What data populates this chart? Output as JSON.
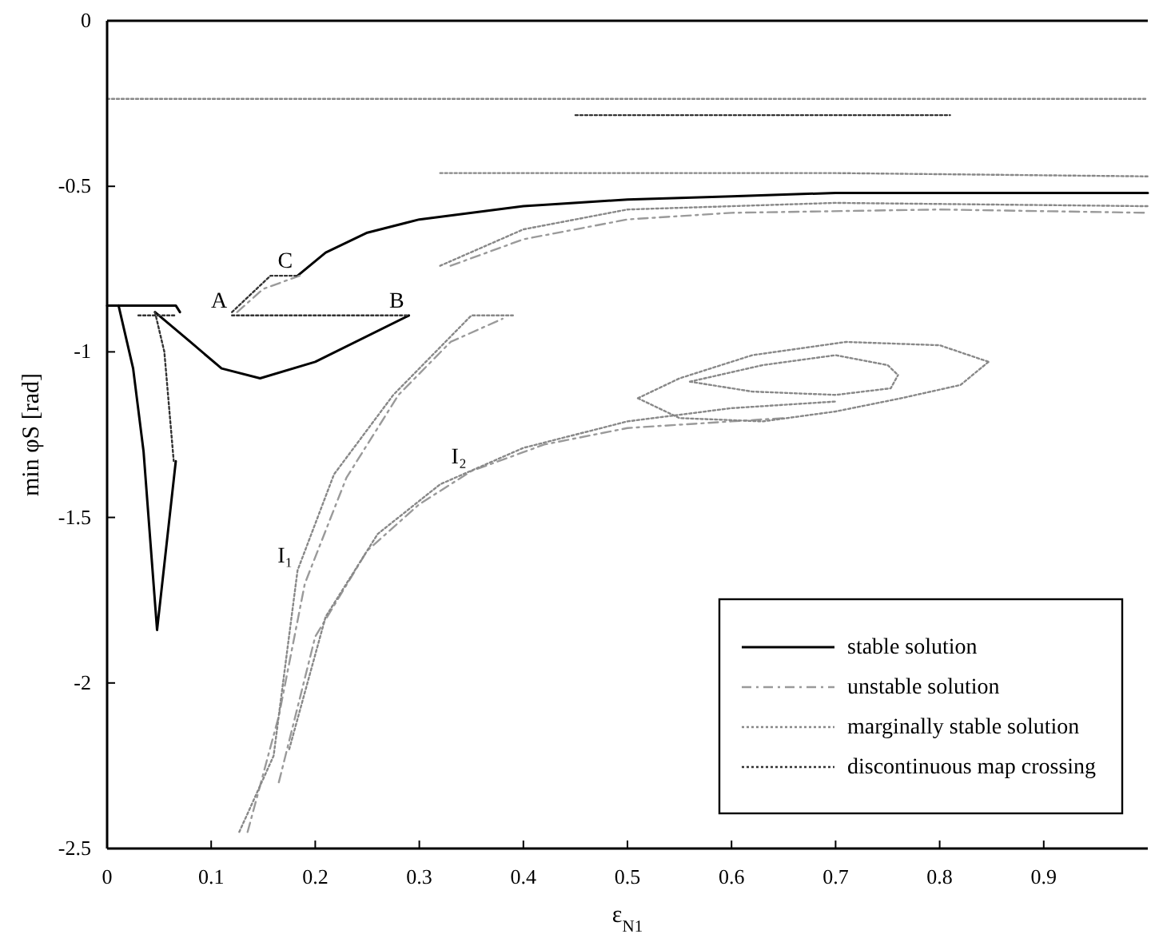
{
  "chart_data": {
    "type": "line",
    "xlabel": "ε$_{N1}$",
    "ylabel": "min φS [rad]",
    "xlim": [
      0,
      1
    ],
    "ylim": [
      -2.5,
      0
    ],
    "xticks": [
      0,
      0.1,
      0.2,
      0.3,
      0.4,
      0.5,
      0.6,
      0.7,
      0.8,
      0.9
    ],
    "yticks": [
      0,
      -0.5,
      -1,
      -1.5,
      -2,
      -2.5
    ],
    "grid": false,
    "legend": "bottom right",
    "marker": "none",
    "annotations": [
      {
        "text": "A",
        "x": 0.12,
        "y": -0.89
      },
      {
        "text": "B",
        "x": 0.29,
        "y": -0.89
      },
      {
        "text": "C",
        "x": 0.183,
        "y": -0.77
      },
      {
        "text": "I₁",
        "x": 0.183,
        "y": -1.66
      },
      {
        "text": "I₂",
        "x": 0.35,
        "y": -1.36
      }
    ],
    "series": [
      {
        "name": "stable solution",
        "color": "#000000",
        "line_style": "solid",
        "x": [
          0,
          0.066,
          0.07,
          null,
          0.011,
          0.025,
          0.035,
          0.048,
          0.066,
          null,
          0.046,
          0.08,
          0.11,
          0.147,
          0.2,
          0.29,
          null,
          0.183,
          0.21,
          0.25,
          0.3,
          0.4,
          0.5,
          0.6,
          0.7,
          0.8,
          1.0
        ],
        "values": [
          -0.86,
          -0.86,
          -0.88,
          null,
          -0.86,
          -1.05,
          -1.3,
          -1.84,
          -1.33,
          null,
          -0.88,
          -0.97,
          -1.05,
          -1.08,
          -1.03,
          -0.89,
          null,
          -0.77,
          -0.7,
          -0.64,
          -0.6,
          -0.56,
          -0.54,
          -0.53,
          -0.52,
          -0.52,
          -0.52
        ]
      },
      {
        "name": "unstable solution",
        "color": "#9a9a9a",
        "line_style": "dashed",
        "x": [
          0.135,
          0.165,
          0.19,
          0.23,
          0.28,
          0.33,
          0.38,
          null,
          0.165,
          0.2,
          0.25,
          0.3,
          0.35,
          0.42,
          0.5,
          0.6,
          0.65,
          null,
          0.125,
          0.15,
          0.185,
          null,
          0.33,
          0.4,
          0.5,
          0.6,
          0.8,
          1.0
        ],
        "values": [
          -2.45,
          -2.1,
          -1.7,
          -1.38,
          -1.13,
          -0.97,
          -0.9,
          null,
          -2.3,
          -1.86,
          -1.6,
          -1.46,
          -1.36,
          -1.28,
          -1.23,
          -1.21,
          -1.2,
          null,
          -0.88,
          -0.81,
          -0.77,
          null,
          -0.74,
          -0.66,
          -0.6,
          -0.58,
          -0.57,
          -0.58
        ]
      },
      {
        "name": "marginally stable solution",
        "color": "#888888",
        "line_style": "dotted",
        "x": [
          0,
          1,
          null,
          0.127,
          0.16,
          0.183,
          0.218,
          0.275,
          0.35,
          0.39,
          null,
          0.175,
          0.21,
          0.26,
          0.32,
          0.4,
          0.5,
          0.6,
          0.7,
          null,
          0.51,
          0.55,
          0.62,
          0.71,
          0.8,
          0.847,
          null,
          0.51,
          0.55,
          0.63,
          0.7,
          0.763,
          0.82,
          0.847,
          null,
          0.56,
          0.63,
          0.7,
          0.75,
          0.76,
          null,
          0.56,
          0.62,
          0.7,
          0.753,
          0.76,
          null,
          0.32,
          0.5,
          0.7,
          1.0,
          null,
          0.32,
          0.4,
          0.5,
          0.7,
          1.0
        ],
        "values": [
          -0.236,
          -0.236,
          null,
          -2.45,
          -2.22,
          -1.66,
          -1.37,
          -1.13,
          -0.89,
          -0.89,
          null,
          -2.2,
          -1.8,
          -1.55,
          -1.4,
          -1.29,
          -1.21,
          -1.17,
          -1.15,
          null,
          -1.14,
          -1.08,
          -1.01,
          -0.97,
          -0.98,
          -1.03,
          null,
          -1.14,
          -1.2,
          -1.21,
          -1.18,
          -1.14,
          -1.1,
          -1.03,
          null,
          -1.09,
          -1.04,
          -1.01,
          -1.04,
          -1.07,
          null,
          -1.09,
          -1.12,
          -1.13,
          -1.11,
          -1.07,
          null,
          -0.46,
          -0.46,
          -0.46,
          -0.47,
          null,
          -0.74,
          -0.63,
          -0.57,
          -0.55,
          -0.56
        ]
      },
      {
        "name": "discontinuous map crossing",
        "color": "#333333",
        "line_style": "dotted",
        "x": [
          0.03,
          0.066,
          null,
          0.046,
          0.055,
          0.064,
          null,
          0.12,
          0.29,
          null,
          0.12,
          0.157,
          0.183,
          null,
          0.45,
          0.81
        ],
        "values": [
          -0.89,
          -0.89,
          null,
          -0.88,
          -1.0,
          -1.33,
          null,
          -0.89,
          -0.89,
          null,
          -0.88,
          -0.77,
          -0.77,
          null,
          -0.285,
          -0.285
        ]
      }
    ]
  }
}
